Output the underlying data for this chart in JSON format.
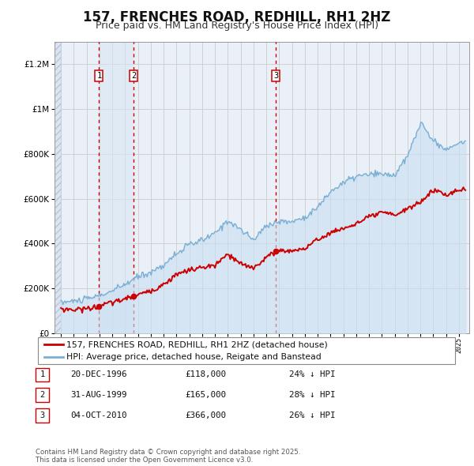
{
  "title": "157, FRENCHES ROAD, REDHILL, RH1 2HZ",
  "subtitle": "Price paid vs. HM Land Registry's House Price Index (HPI)",
  "legend_line1": "157, FRENCHES ROAD, REDHILL, RH1 2HZ (detached house)",
  "legend_line2": "HPI: Average price, detached house, Reigate and Banstead",
  "transactions": [
    {
      "num": 1,
      "date": "20-DEC-1996",
      "price": 118000,
      "pct": "24%",
      "year_x": 1996.97
    },
    {
      "num": 2,
      "date": "31-AUG-1999",
      "price": 165000,
      "pct": "28%",
      "year_x": 1999.67
    },
    {
      "num": 3,
      "date": "04-OCT-2010",
      "price": 366000,
      "pct": "26%",
      "year_x": 2010.75
    }
  ],
  "price_color": "#cc0000",
  "hpi_color": "#7aafd4",
  "hpi_fill_color": "#c8dff0",
  "grid_color": "#cccccc",
  "title_fontsize": 12,
  "subtitle_fontsize": 9,
  "ylim": [
    0,
    1300000
  ],
  "xlim_start": 1993.5,
  "xlim_end": 2025.8,
  "hpi_keypoints_x": [
    1994,
    1995,
    1996,
    1997,
    1998,
    1999,
    2000,
    2001,
    2002,
    2003,
    2004,
    2005,
    2006,
    2007,
    2008,
    2009,
    2010,
    2011,
    2012,
    2013,
    2014,
    2015,
    2016,
    2017,
    2018,
    2019,
    2020,
    2021,
    2022,
    2023,
    2024,
    2025.5
  ],
  "hpi_keypoints_y": [
    138000,
    143000,
    152000,
    168000,
    188000,
    218000,
    252000,
    272000,
    305000,
    355000,
    395000,
    415000,
    445000,
    505000,
    462000,
    415000,
    482000,
    498000,
    498000,
    518000,
    562000,
    632000,
    672000,
    700000,
    708000,
    710000,
    705000,
    790000,
    940000,
    858000,
    820000,
    860000
  ],
  "price_keypoints_x": [
    1994,
    1995,
    1996,
    1996.97,
    1997,
    1998,
    1999,
    1999.67,
    2000,
    2001,
    2002,
    2003,
    2004,
    2005,
    2006,
    2007,
    2008,
    2009,
    2010,
    2010.75,
    2011,
    2012,
    2013,
    2014,
    2015,
    2016,
    2017,
    2018,
    2019,
    2020,
    2021,
    2022,
    2023,
    2024,
    2025.5
  ],
  "price_keypoints_y": [
    108000,
    105000,
    110000,
    118000,
    122000,
    138000,
    152000,
    165000,
    172000,
    188000,
    218000,
    262000,
    282000,
    292000,
    302000,
    352000,
    308000,
    292000,
    338000,
    366000,
    368000,
    368000,
    378000,
    418000,
    448000,
    468000,
    488000,
    518000,
    538000,
    528000,
    555000,
    585000,
    640000,
    618000,
    645000
  ]
}
